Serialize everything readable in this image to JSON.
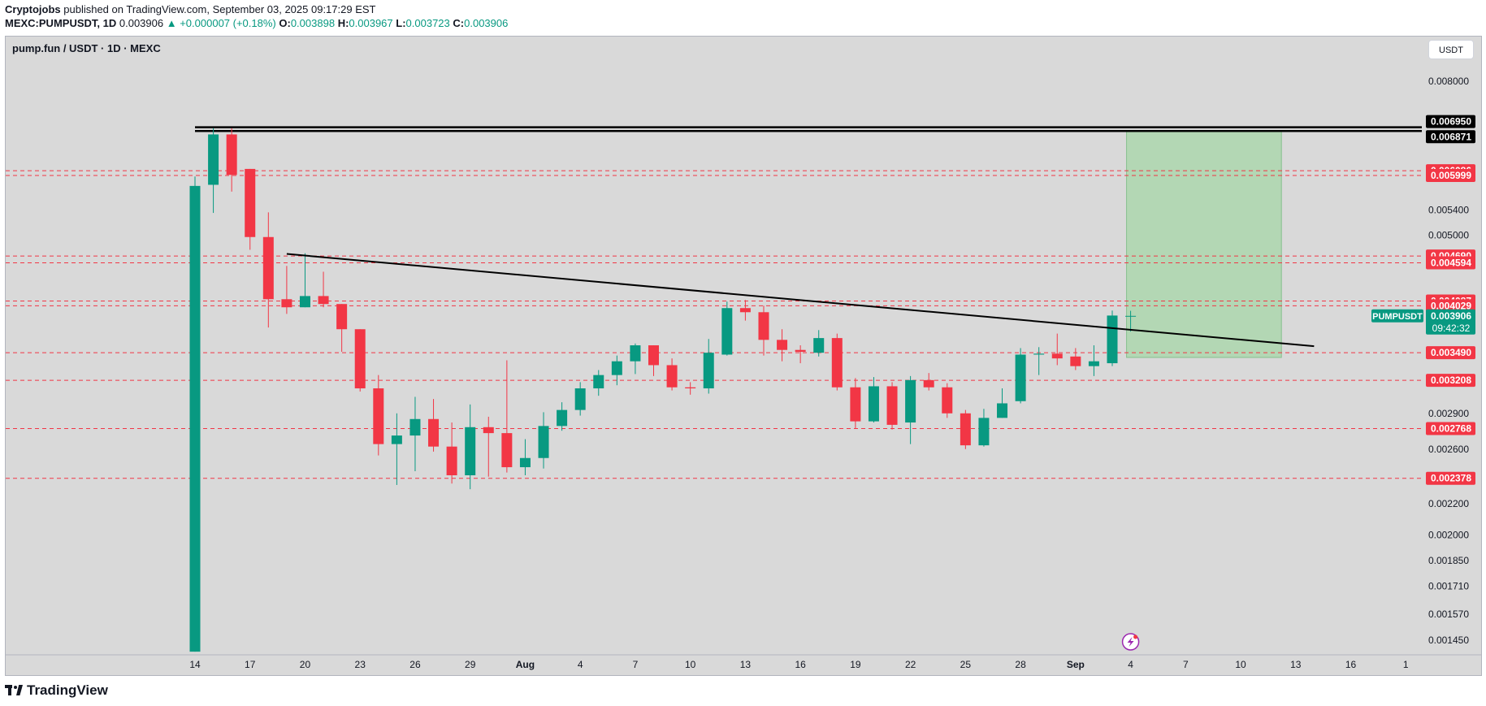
{
  "header": {
    "author": "Cryptojobs",
    "published": "published on TradingView.com, September 03, 2025 09:17:29 EST",
    "symbol_line": "MEXC:PUMPUSDT, 1D",
    "last": "0.003906",
    "change": "▲ +0.000007 (+0.18%)",
    "o_label": "O:",
    "o_value": "0.003898",
    "h_label": "H:",
    "h_value": "0.003967",
    "l_label": "L:",
    "l_value": "0.003723",
    "c_label": "C:",
    "c_value": "0.003906"
  },
  "pane": {
    "title": "pump.fun / USDT · 1D · MEXC",
    "currency_button": "USDT",
    "ticker": "PUMPUSDT",
    "ticker_price": "0.003906",
    "countdown": "09:42:32"
  },
  "footer": {
    "brand": "TradingView"
  },
  "colors": {
    "up": "#089981",
    "down": "#f23645",
    "level": "#f23645",
    "target_zone": "#a5d6a7",
    "background": "#d9d9d9"
  },
  "icons": [
    "lightning-event-icon",
    "tradingview-logo-icon"
  ],
  "chart_data": {
    "type": "candlestick",
    "axis": {
      "y_ticks": [
        0.008,
        0.0054,
        0.005,
        0.0029,
        0.0026,
        0.0022,
        0.002,
        0.00185,
        0.00171,
        0.00157,
        0.00145
      ],
      "x_ticks": [
        {
          "label": "14",
          "i": 0
        },
        {
          "label": "17",
          "i": 3
        },
        {
          "label": "20",
          "i": 6
        },
        {
          "label": "23",
          "i": 9
        },
        {
          "label": "26",
          "i": 12
        },
        {
          "label": "29",
          "i": 15
        },
        {
          "label": "Aug",
          "i": 18
        },
        {
          "label": "4",
          "i": 21
        },
        {
          "label": "7",
          "i": 24
        },
        {
          "label": "10",
          "i": 27
        },
        {
          "label": "13",
          "i": 30
        },
        {
          "label": "16",
          "i": 33
        },
        {
          "label": "19",
          "i": 36
        },
        {
          "label": "22",
          "i": 39
        },
        {
          "label": "25",
          "i": 42
        },
        {
          "label": "28",
          "i": 45
        },
        {
          "label": "Sep",
          "i": 48
        },
        {
          "label": "4",
          "i": 51
        },
        {
          "label": "7",
          "i": 54
        },
        {
          "label": "10",
          "i": 57
        },
        {
          "label": "13",
          "i": 60
        },
        {
          "label": "16",
          "i": 63
        },
        {
          "label": "1",
          "i": 66
        }
      ]
    },
    "resistance_levels": [
      "0.006950",
      "0.006871"
    ],
    "levels": [
      "0.006086",
      "0.005999",
      "0.004690",
      "0.004594",
      "0.004087",
      "0.004029",
      "0.003490",
      "0.003208",
      "0.002768",
      "0.002378"
    ],
    "candles": [
      {
        "i": 0,
        "o": 0.0014,
        "h": 0.00598,
        "l": 0.0014,
        "c": 0.00581
      },
      {
        "i": 1,
        "o": 0.00583,
        "h": 0.00693,
        "l": 0.00535,
        "c": 0.0068
      },
      {
        "i": 2,
        "o": 0.0068,
        "h": 0.00693,
        "l": 0.00571,
        "c": 0.00601
      },
      {
        "i": 3,
        "o": 0.00612,
        "h": 0.00612,
        "l": 0.00478,
        "c": 0.00497
      },
      {
        "i": 4,
        "o": 0.00497,
        "h": 0.00536,
        "l": 0.00377,
        "c": 0.00411
      },
      {
        "i": 5,
        "o": 0.00411,
        "h": 0.00455,
        "l": 0.00393,
        "c": 0.00401
      },
      {
        "i": 6,
        "o": 0.00401,
        "h": 0.00473,
        "l": 0.00401,
        "c": 0.00415
      },
      {
        "i": 7,
        "o": 0.00415,
        "h": 0.00447,
        "l": 0.00401,
        "c": 0.00405
      },
      {
        "i": 8,
        "o": 0.00405,
        "h": 0.00405,
        "l": 0.0035,
        "c": 0.00375
      },
      {
        "i": 9,
        "o": 0.00375,
        "h": 0.00375,
        "l": 0.0031,
        "c": 0.00313
      },
      {
        "i": 10,
        "o": 0.00313,
        "h": 0.00326,
        "l": 0.00255,
        "c": 0.00264
      },
      {
        "i": 11,
        "o": 0.00264,
        "h": 0.0029,
        "l": 0.00233,
        "c": 0.00271
      },
      {
        "i": 12,
        "o": 0.00271,
        "h": 0.00305,
        "l": 0.00243,
        "c": 0.00285
      },
      {
        "i": 13,
        "o": 0.00285,
        "h": 0.00303,
        "l": 0.00258,
        "c": 0.00262
      },
      {
        "i": 14,
        "o": 0.00262,
        "h": 0.00282,
        "l": 0.00234,
        "c": 0.0024
      },
      {
        "i": 15,
        "o": 0.0024,
        "h": 0.00298,
        "l": 0.0023,
        "c": 0.00278
      },
      {
        "i": 16,
        "o": 0.00278,
        "h": 0.00287,
        "l": 0.00239,
        "c": 0.00273
      },
      {
        "i": 17,
        "o": 0.00273,
        "h": 0.00341,
        "l": 0.00242,
        "c": 0.00246
      },
      {
        "i": 18,
        "o": 0.00246,
        "h": 0.00268,
        "l": 0.0024,
        "c": 0.00253
      },
      {
        "i": 19,
        "o": 0.00253,
        "h": 0.00291,
        "l": 0.00245,
        "c": 0.00279
      },
      {
        "i": 20,
        "o": 0.00279,
        "h": 0.003,
        "l": 0.00275,
        "c": 0.00293
      },
      {
        "i": 21,
        "o": 0.00293,
        "h": 0.00319,
        "l": 0.00288,
        "c": 0.00313
      },
      {
        "i": 22,
        "o": 0.00313,
        "h": 0.00331,
        "l": 0.00306,
        "c": 0.00326
      },
      {
        "i": 23,
        "o": 0.00326,
        "h": 0.00346,
        "l": 0.00316,
        "c": 0.0034
      },
      {
        "i": 24,
        "o": 0.0034,
        "h": 0.00359,
        "l": 0.00327,
        "c": 0.00357
      },
      {
        "i": 25,
        "o": 0.00357,
        "h": 0.00357,
        "l": 0.00325,
        "c": 0.00336
      },
      {
        "i": 26,
        "o": 0.00336,
        "h": 0.00343,
        "l": 0.00311,
        "c": 0.00314
      },
      {
        "i": 27,
        "o": 0.00314,
        "h": 0.00319,
        "l": 0.00307,
        "c": 0.00313
      },
      {
        "i": 28,
        "o": 0.00313,
        "h": 0.00364,
        "l": 0.00308,
        "c": 0.00349
      },
      {
        "i": 29,
        "o": 0.00347,
        "h": 0.00408,
        "l": 0.00346,
        "c": 0.004
      },
      {
        "i": 30,
        "o": 0.004,
        "h": 0.0041,
        "l": 0.00385,
        "c": 0.00395
      },
      {
        "i": 31,
        "o": 0.00395,
        "h": 0.00403,
        "l": 0.00346,
        "c": 0.00363
      },
      {
        "i": 32,
        "o": 0.00363,
        "h": 0.00375,
        "l": 0.0034,
        "c": 0.00352
      },
      {
        "i": 33,
        "o": 0.00352,
        "h": 0.00357,
        "l": 0.00338,
        "c": 0.0035
      },
      {
        "i": 34,
        "o": 0.00349,
        "h": 0.00374,
        "l": 0.00345,
        "c": 0.00365
      },
      {
        "i": 35,
        "o": 0.00365,
        "h": 0.0037,
        "l": 0.00311,
        "c": 0.00314
      },
      {
        "i": 36,
        "o": 0.00314,
        "h": 0.00323,
        "l": 0.00277,
        "c": 0.00283
      },
      {
        "i": 37,
        "o": 0.00283,
        "h": 0.00324,
        "l": 0.00282,
        "c": 0.00315
      },
      {
        "i": 38,
        "o": 0.00315,
        "h": 0.00319,
        "l": 0.00276,
        "c": 0.0028
      },
      {
        "i": 39,
        "o": 0.00282,
        "h": 0.00325,
        "l": 0.00264,
        "c": 0.00321
      },
      {
        "i": 40,
        "o": 0.00321,
        "h": 0.00328,
        "l": 0.00311,
        "c": 0.00314
      },
      {
        "i": 41,
        "o": 0.00314,
        "h": 0.00318,
        "l": 0.00286,
        "c": 0.0029
      },
      {
        "i": 42,
        "o": 0.0029,
        "h": 0.00293,
        "l": 0.0026,
        "c": 0.00263
      },
      {
        "i": 43,
        "o": 0.00263,
        "h": 0.00294,
        "l": 0.00262,
        "c": 0.00286
      },
      {
        "i": 44,
        "o": 0.00286,
        "h": 0.00313,
        "l": 0.00286,
        "c": 0.00299
      },
      {
        "i": 45,
        "o": 0.00301,
        "h": 0.00354,
        "l": 0.00299,
        "c": 0.00347
      },
      {
        "i": 46,
        "o": 0.00347,
        "h": 0.00355,
        "l": 0.00326,
        "c": 0.00348
      },
      {
        "i": 47,
        "o": 0.00348,
        "h": 0.0037,
        "l": 0.00336,
        "c": 0.00343
      },
      {
        "i": 48,
        "o": 0.00345,
        "h": 0.00354,
        "l": 0.00331,
        "c": 0.00335
      },
      {
        "i": 49,
        "o": 0.00335,
        "h": 0.00357,
        "l": 0.00325,
        "c": 0.0034
      },
      {
        "i": 50,
        "o": 0.00338,
        "h": 0.00397,
        "l": 0.00335,
        "c": 0.00391
      },
      {
        "i": 51,
        "o": 0.003898,
        "h": 0.003967,
        "l": 0.003723,
        "c": 0.003906
      }
    ],
    "trendline": {
      "from": {
        "i": 5,
        "price": 0.00472
      },
      "to": {
        "i": 61,
        "price": 0.00356
      }
    },
    "target_zone": {
      "from_i": 51,
      "to_i": 59,
      "top": 0.006871,
      "bottom": 0.00344
    }
  }
}
